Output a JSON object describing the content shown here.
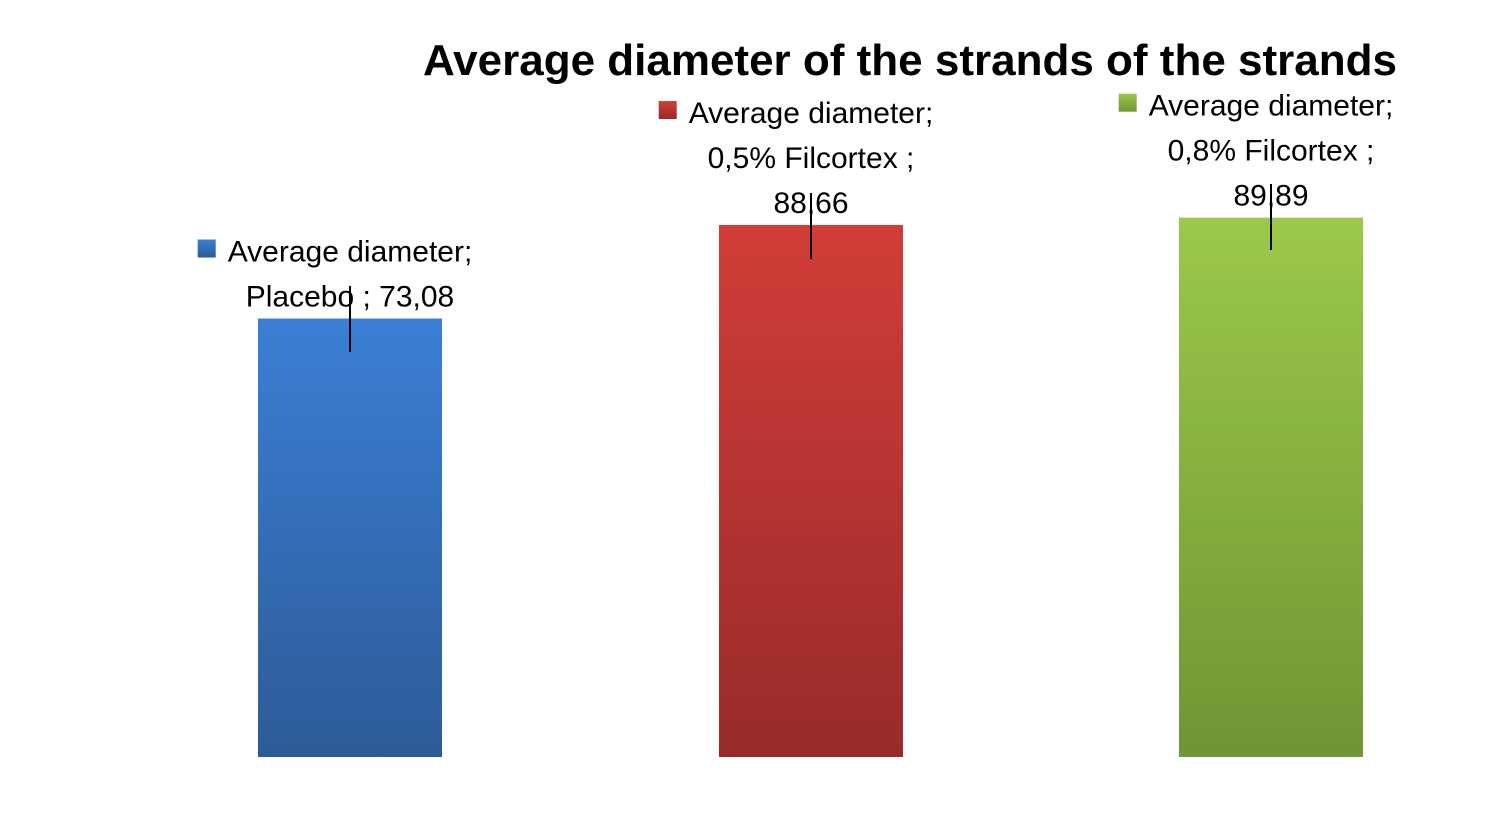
{
  "chart_data": {
    "type": "bar",
    "title": "Average diameter of the strands of the strands",
    "xlabel": "",
    "ylabel": "",
    "ylim": [
      0,
      100
    ],
    "grid": false,
    "categories": [
      "Placebo",
      "0,5% Filcortex",
      "0,8% Filcortex"
    ],
    "values": [
      73.08,
      88.66,
      89.89
    ],
    "series_name": "Average diameter",
    "colors": {
      "Placebo": {
        "top": "#3b7fd6",
        "bottom": "#2d5b97"
      },
      "0,5% Filcortex": {
        "top": "#d23d38",
        "bottom": "#982b2a"
      },
      "0,8% Filcortex": {
        "top": "#9cc84a",
        "bottom": "#6f9534"
      }
    },
    "data_labels": [
      {
        "lines": [
          "Average diameter;",
          "Placebo ;  73,08"
        ]
      },
      {
        "lines": [
          "Average diameter;",
          "0,5% Filcortex ;",
          "88,66"
        ]
      },
      {
        "lines": [
          "Average diameter;",
          "0,8% Filcortex ;",
          "89,89"
        ]
      }
    ],
    "error_bars": [
      {
        "low": 67.5,
        "high": 78.5
      },
      {
        "low": 83.0,
        "high": 94.0
      },
      {
        "low": 84.5,
        "high": 95.5
      }
    ]
  }
}
